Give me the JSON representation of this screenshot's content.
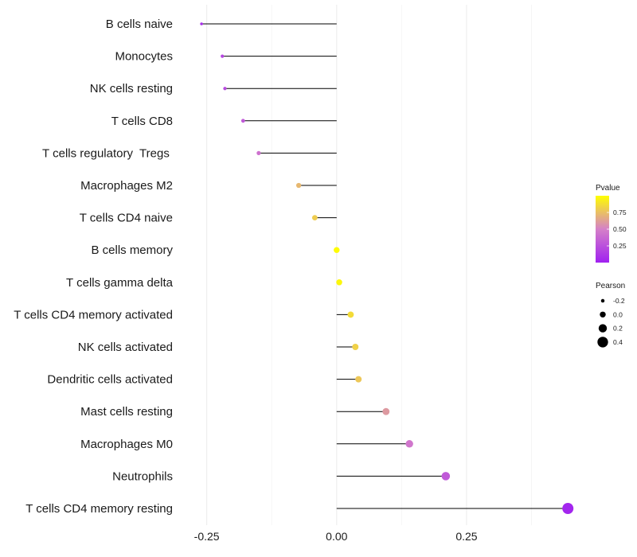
{
  "chart_data": {
    "type": "lollipop",
    "title": "",
    "xlabel": "",
    "ylabel": "",
    "xlim": [
      -0.3,
      0.46
    ],
    "xticks": [
      {
        "value": -0.25,
        "label": "-0.25"
      },
      {
        "value": 0.0,
        "label": "0.00"
      },
      {
        "value": 0.25,
        "label": "0.25"
      }
    ],
    "grid": true,
    "categories": [
      "B cells naive",
      "Monocytes",
      "NK cells resting",
      "T cells CD8",
      "T cells regulatory  Tregs ",
      "Macrophages M2",
      "T cells CD4 naive",
      "B cells memory",
      "T cells gamma delta",
      "T cells CD4 memory activated",
      "NK cells activated",
      "Dendritic cells activated",
      "Mast cells resting",
      "Macrophages M0",
      "Neutrophils",
      "T cells CD4 memory resting"
    ],
    "pearson": [
      -0.26,
      -0.22,
      -0.215,
      -0.18,
      -0.15,
      -0.073,
      -0.042,
      0.0,
      0.005,
      0.027,
      0.036,
      0.042,
      0.095,
      0.14,
      0.21,
      0.445
    ],
    "pvalue": [
      0.08,
      0.2,
      0.22,
      0.3,
      0.42,
      0.72,
      0.8,
      0.99,
      0.97,
      0.86,
      0.82,
      0.78,
      0.6,
      0.45,
      0.3,
      0.03
    ],
    "legend_color": {
      "title": "Pvalue",
      "ticks": [
        {
          "value": 0.75,
          "label": "0.75"
        },
        {
          "value": 0.5,
          "label": "0.50"
        },
        {
          "value": 0.25,
          "label": "0.25"
        }
      ],
      "range": [
        0.0,
        1.0
      ],
      "low_color": "#A020F0",
      "mid_color": "#D580C8",
      "high_color": "#FFFF00"
    },
    "legend_size": {
      "title": "Pearson",
      "entries": [
        {
          "value": -0.2,
          "label": "-0.2"
        },
        {
          "value": 0.0,
          "label": "0.0"
        },
        {
          "value": 0.2,
          "label": "0.2"
        },
        {
          "value": 0.4,
          "label": "0.4"
        }
      ]
    },
    "legend_position": "right"
  }
}
